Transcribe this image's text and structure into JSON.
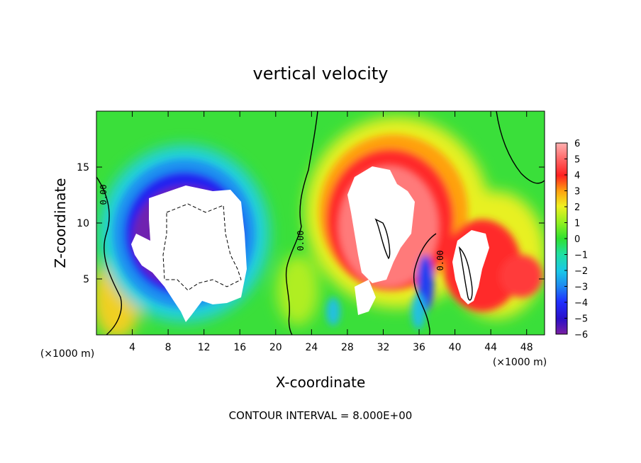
{
  "chart_data": {
    "type": "heatmap",
    "title": "vertical velocity",
    "xlabel": "X-coordinate",
    "ylabel": "Z-coordinate",
    "x_unit": "(×1000 m)",
    "z_unit": "(×1000 m)",
    "xlim": [
      0,
      50
    ],
    "ylim": [
      0,
      20
    ],
    "x_ticks": [
      "4",
      "8",
      "12",
      "16",
      "20",
      "24",
      "28",
      "32",
      "36",
      "40",
      "44",
      "48"
    ],
    "y_ticks": [
      "5",
      "10",
      "15"
    ],
    "colorbar": {
      "min": -6,
      "max": 6,
      "ticks": [
        "6",
        "5",
        "4",
        "3",
        "2",
        "1",
        "0",
        "−1",
        "−2",
        "−3",
        "−4",
        "−5",
        "−6"
      ]
    },
    "contour_label": "0.00",
    "note": "CONTOUR INTERVAL = 8.000E+00",
    "features": [
      {
        "kind": "downdraft",
        "x": 11,
        "z": 9,
        "value": -6
      },
      {
        "kind": "updraft",
        "x": 30,
        "z": 11,
        "value": 6
      },
      {
        "kind": "updraft",
        "x": 42,
        "z": 7,
        "value": 6
      },
      {
        "kind": "updraft",
        "x": 47,
        "z": 5,
        "value": 4
      }
    ]
  }
}
